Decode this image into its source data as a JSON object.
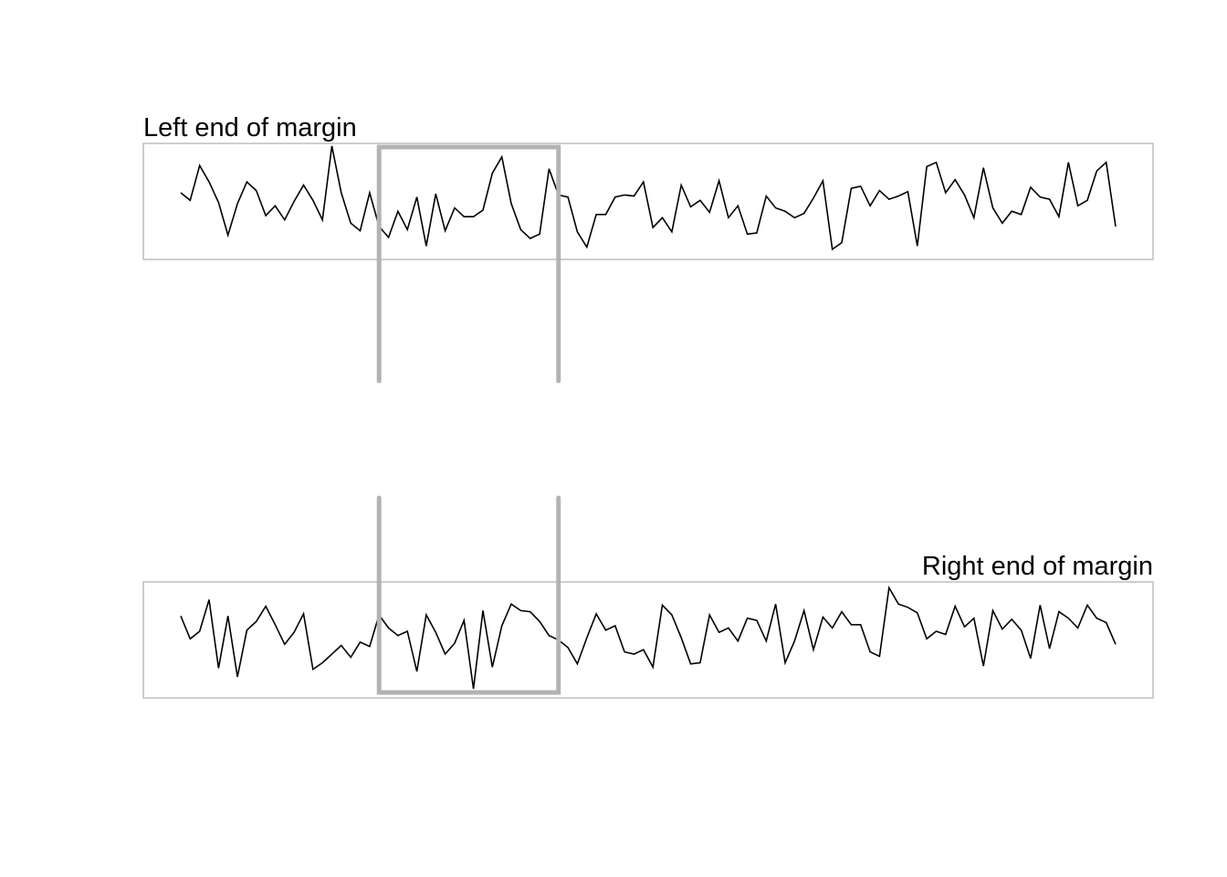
{
  "chart_data": [
    {
      "type": "line",
      "title": "Left end of margin",
      "title_align": "left",
      "xlabel": "",
      "ylabel": "",
      "grid": false,
      "axes_visible": false,
      "xlim": [
        1,
        100
      ],
      "ylim": [
        0,
        10
      ],
      "series": [
        {
          "values": [
            5.8,
            5.1,
            8.3,
            6.8,
            4.9,
            1.9,
            4.8,
            6.8,
            6.0,
            3.7,
            4.6,
            3.3,
            5.0,
            6.5,
            5.1,
            3.3,
            10.1,
            5.8,
            3.0,
            2.3,
            5.8,
            2.7,
            1.7,
            4.1,
            2.4,
            5.4,
            0.9,
            5.7,
            2.3,
            4.4,
            3.6,
            3.6,
            4.2,
            7.6,
            9.1,
            4.8,
            2.4,
            1.6,
            2.0,
            8.0,
            5.6,
            5.4,
            2.2,
            0.8,
            3.8,
            3.8,
            5.4,
            5.6,
            5.5,
            6.8,
            2.6,
            3.5,
            2.2,
            6.5,
            4.5,
            5.1,
            4.0,
            6.9,
            3.5,
            4.6,
            2.0,
            2.1,
            5.5,
            4.4,
            4.1,
            3.5,
            3.9,
            5.3,
            6.9,
            0.6,
            1.2,
            6.2,
            6.4,
            4.6,
            6.0,
            5.2,
            5.5,
            5.9,
            0.9,
            8.2,
            8.6,
            5.8,
            7.0,
            5.6,
            3.5,
            8.1,
            4.4,
            3.0,
            4.1,
            3.8,
            6.3,
            5.4,
            5.2,
            3.6,
            8.6,
            4.6,
            5.1,
            7.8,
            8.6,
            2.7
          ]
        }
      ],
      "highlight_window": [
        22,
        41
      ],
      "highlight_color": "#b3b3b3",
      "frame_color": "#bebebe",
      "line_color": "#000000"
    },
    {
      "type": "line",
      "title": "Right end of margin",
      "title_align": "right",
      "xlabel": "",
      "ylabel": "",
      "grid": false,
      "axes_visible": false,
      "xlim": [
        1,
        100
      ],
      "ylim": [
        0,
        10
      ],
      "series": [
        {
          "values": [
            7.2,
            5.1,
            5.8,
            8.7,
            2.4,
            7.2,
            1.6,
            5.9,
            6.7,
            8.1,
            6.4,
            4.6,
            5.7,
            7.4,
            2.3,
            2.9,
            3.7,
            4.5,
            3.4,
            4.8,
            4.4,
            7.3,
            6.1,
            5.4,
            5.8,
            2.1,
            7.3,
            5.7,
            3.7,
            4.7,
            6.8,
            0.5,
            7.7,
            2.5,
            6.3,
            8.3,
            7.7,
            7.6,
            6.7,
            5.4,
            5.0,
            4.3,
            2.8,
            5.2,
            7.4,
            5.9,
            6.3,
            3.9,
            3.7,
            4.1,
            2.5,
            8.2,
            7.3,
            5.2,
            2.8,
            2.9,
            7.3,
            5.7,
            6.1,
            4.9,
            7.0,
            6.8,
            4.9,
            8.3,
            2.9,
            4.9,
            7.7,
            4.1,
            7.1,
            6.1,
            7.6,
            6.4,
            6.4,
            3.9,
            3.5,
            9.8,
            8.3,
            8.0,
            7.5,
            5.1,
            5.8,
            5.5,
            8.1,
            6.2,
            7.0,
            2.6,
            7.7,
            6.0,
            6.9,
            5.9,
            3.3,
            8.2,
            4.2,
            7.6,
            7.0,
            6.1,
            8.2,
            7.0,
            6.6,
            4.6
          ]
        }
      ],
      "highlight_window": [
        22,
        41
      ],
      "highlight_color": "#b3b3b3",
      "frame_color": "#bebebe",
      "line_color": "#000000"
    }
  ]
}
